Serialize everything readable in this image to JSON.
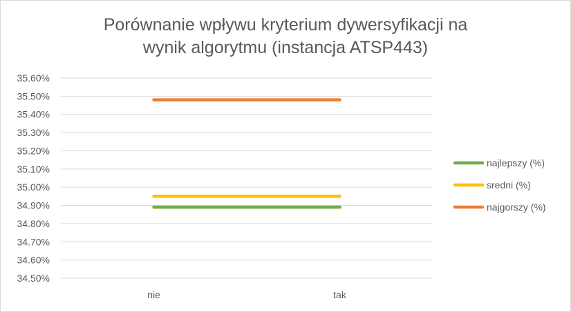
{
  "chart_data": {
    "type": "line",
    "title": "Porównanie wpływu kryterium dywersyfikacji na\nwynik algorytmu (instancja ATSP443)",
    "categories": [
      "nie",
      "tak"
    ],
    "series": [
      {
        "name": "najlepszy (%)",
        "values": [
          34.89,
          34.89
        ],
        "color": "#70ad47"
      },
      {
        "name": "sredni (%)",
        "values": [
          34.95,
          34.95
        ],
        "color": "#ffc000"
      },
      {
        "name": "najgorszy (%)",
        "values": [
          35.48,
          35.48
        ],
        "color": "#ed7d31"
      }
    ],
    "ylim": [
      34.5,
      35.6
    ],
    "yticks": [
      "34.50%",
      "34.60%",
      "34.70%",
      "34.80%",
      "34.90%",
      "35.00%",
      "35.10%",
      "35.20%",
      "35.30%",
      "35.40%",
      "35.50%",
      "35.60%"
    ],
    "grid": true,
    "legend_position": "right",
    "colors": {
      "gridline": "#d9d9d9",
      "text": "#595959"
    }
  }
}
